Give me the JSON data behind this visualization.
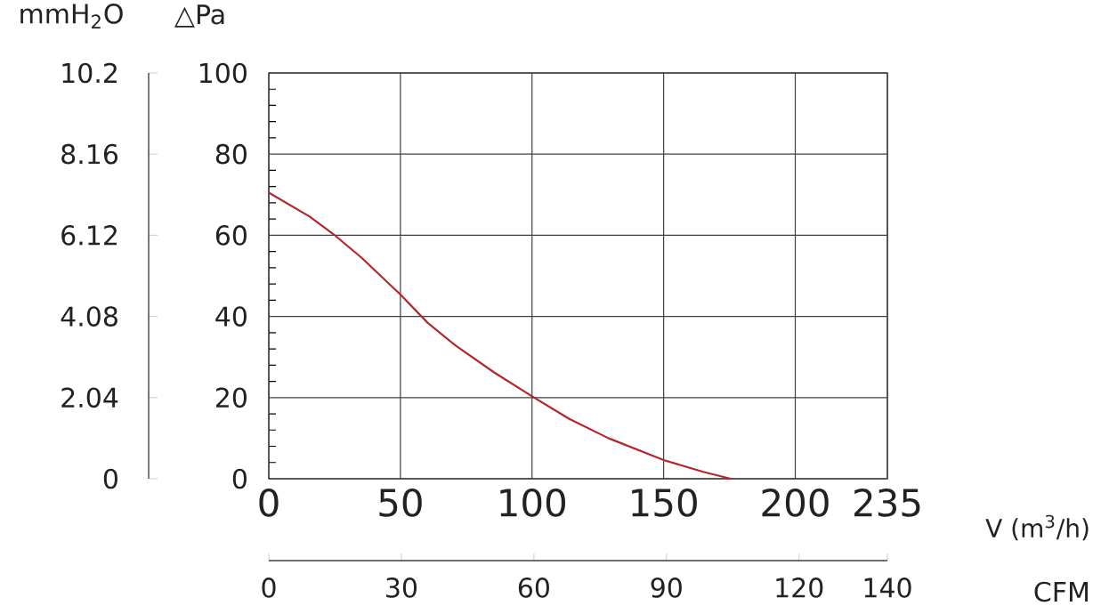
{
  "chart_data": {
    "type": "line",
    "xlabel": "V (m$^{3}$/h)",
    "ylabel": "△Pa",
    "y2label": "mmH$_{2}$O",
    "x2label": "CFM",
    "x": [
      0,
      15.5,
      24.5,
      35,
      50,
      60.4,
      71,
      85.6,
      100,
      114,
      129,
      150,
      165,
      175.5
    ],
    "values": [
      70.5,
      64.6,
      60.3,
      54.6,
      45.4,
      38.4,
      32.8,
      26.2,
      20.3,
      14.8,
      10,
      4.6,
      1.7,
      0
    ],
    "color": "#b3262b",
    "xlim": [
      0,
      235
    ],
    "xticks": [
      0,
      50,
      100,
      150,
      200,
      235
    ],
    "ylim": [
      0,
      100
    ],
    "yticks": [
      0,
      20,
      40,
      60,
      80,
      100
    ],
    "y2lim": [
      0,
      10.2
    ],
    "y2ticks": [
      0,
      2.04,
      4.08,
      6.12,
      8.16,
      10.2
    ],
    "x2lim": [
      0,
      140
    ],
    "x2ticks": [
      0,
      30,
      60,
      90,
      120,
      140
    ],
    "grid": true
  }
}
